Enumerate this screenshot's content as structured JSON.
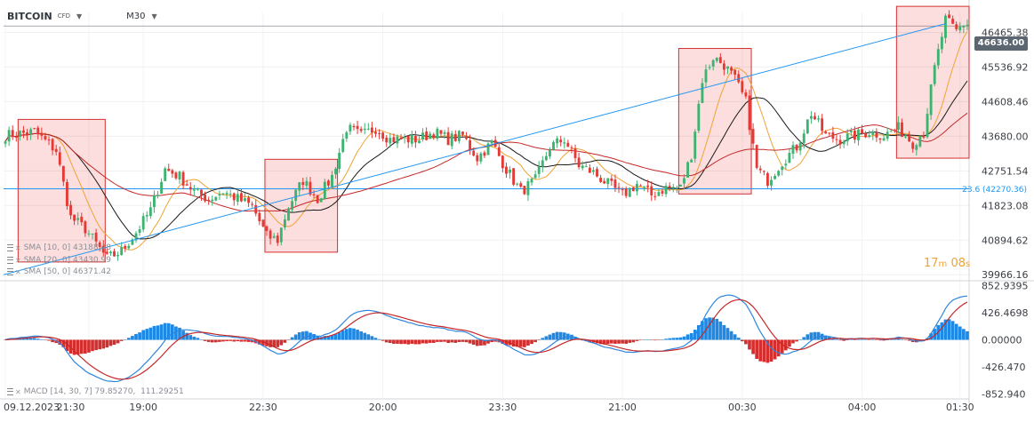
{
  "header": {
    "symbol": "BITCOIN",
    "instrument_type": "CFD",
    "timeframe": "M30"
  },
  "chart_data": [
    {
      "type": "candlestick",
      "title": "",
      "x_ticks": [
        "09.12.2023",
        "21:30",
        "19:00",
        "22:30",
        "20:00",
        "23:30",
        "21:00",
        "00:30",
        "04:00",
        "01:30"
      ],
      "y_ticks": [
        39966.16,
        40894.62,
        41823.08,
        42751.54,
        43680.0,
        44608.46,
        45536.92,
        46465.38
      ],
      "ylim": [
        39900,
        47000
      ],
      "last_price": "46636.00",
      "countdown": {
        "minutes": "17",
        "m_unit": "m",
        "seconds": "08",
        "s_unit": "s"
      },
      "price_anchors": [
        [
          0,
          43700
        ],
        [
          8,
          43800
        ],
        [
          14,
          43300
        ],
        [
          18,
          41500
        ],
        [
          22,
          41200
        ],
        [
          28,
          40400
        ],
        [
          32,
          40600
        ],
        [
          36,
          41100
        ],
        [
          40,
          41700
        ],
        [
          44,
          42800
        ],
        [
          48,
          42600
        ],
        [
          52,
          42200
        ],
        [
          56,
          42000
        ],
        [
          60,
          42200
        ],
        [
          64,
          42000
        ],
        [
          68,
          41800
        ],
        [
          72,
          41000
        ],
        [
          75,
          40900
        ],
        [
          78,
          41800
        ],
        [
          82,
          42500
        ],
        [
          86,
          42000
        ],
        [
          90,
          42600
        ],
        [
          94,
          43900
        ],
        [
          98,
          43700
        ],
        [
          102,
          43900
        ],
        [
          106,
          43600
        ],
        [
          110,
          43600
        ],
        [
          114,
          43600
        ],
        [
          118,
          43800
        ],
        [
          122,
          43600
        ],
        [
          126,
          43700
        ],
        [
          130,
          43100
        ],
        [
          134,
          43500
        ],
        [
          138,
          42800
        ],
        [
          142,
          42200
        ],
        [
          146,
          42500
        ],
        [
          150,
          43400
        ],
        [
          154,
          43600
        ],
        [
          158,
          42900
        ],
        [
          162,
          42700
        ],
        [
          166,
          42400
        ],
        [
          170,
          42100
        ],
        [
          174,
          42400
        ],
        [
          178,
          42100
        ],
        [
          182,
          42300
        ],
        [
          186,
          42300
        ],
        [
          189,
          43200
        ],
        [
          192,
          45200
        ],
        [
          195,
          45800
        ],
        [
          198,
          45600
        ],
        [
          201,
          45200
        ],
        [
          204,
          44600
        ],
        [
          207,
          42800
        ],
        [
          210,
          42500
        ],
        [
          214,
          43000
        ],
        [
          218,
          43400
        ],
        [
          222,
          44300
        ],
        [
          226,
          43700
        ],
        [
          230,
          43600
        ],
        [
          234,
          43700
        ],
        [
          238,
          43800
        ],
        [
          242,
          43700
        ],
        [
          246,
          43900
        ],
        [
          250,
          43500
        ],
        [
          253,
          43800
        ],
        [
          256,
          45500
        ],
        [
          259,
          46800
        ],
        [
          262,
          46500
        ],
        [
          264,
          46700
        ]
      ],
      "indicators": [
        {
          "label": "SMA [10, 0]",
          "value": "43188.48",
          "color": "#f0a233"
        },
        {
          "label": "SMA [20, 0]",
          "value": "43430.99",
          "color": "#1a1a1a"
        },
        {
          "label": "SMA [50, 0]",
          "value": "46371.42",
          "color": "#c62828"
        }
      ],
      "fibonacci": {
        "level": "23.6",
        "price": 42270.36,
        "label": "23.6 (42270.36)",
        "color": "#2196f3"
      },
      "trendline": {
        "from": [
          "09.12.2023 21:30",
          39966.16
        ],
        "to": [
          "04:00",
          46700
        ],
        "color": "#2196f3"
      },
      "highlight_zones": [
        {
          "from_bar": 4,
          "to_bar": 28
        },
        {
          "from_bar": 72,
          "to_bar": 92
        },
        {
          "from_bar": 186,
          "to_bar": 206
        },
        {
          "from_bar": 246,
          "to_bar": 266
        }
      ],
      "candle_colors": {
        "up": "#3cb371",
        "down": "#e53935"
      }
    },
    {
      "type": "line",
      "title": "",
      "indicator": "MACD [14, 30, 7]",
      "values": [
        "79.85270",
        "111.29251"
      ],
      "y_ticks": [
        "852.9395",
        "426.4698",
        "0.00000",
        "-426.470",
        "-852.940"
      ],
      "ylim": [
        -900,
        900
      ],
      "series": [
        {
          "color": "#2e86de"
        },
        {
          "color": "#c62828"
        }
      ],
      "histogram_colors": {
        "positive": "#1e88e5",
        "negative": "#d32f2f"
      }
    }
  ]
}
